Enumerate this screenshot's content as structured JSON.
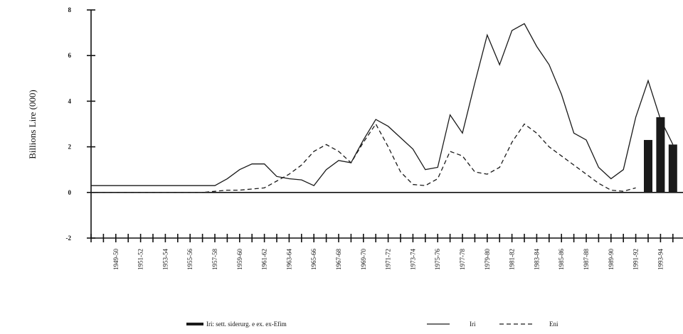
{
  "chart_data": {
    "type": "line",
    "y_label": "Billions Lire (000)",
    "ylim": [
      -2,
      8
    ],
    "yticks": [
      -2,
      0,
      2,
      4,
      6,
      8
    ],
    "grid": false,
    "categories": [
      null,
      null,
      "1949-50",
      null,
      "1951-52",
      null,
      "1953-54",
      null,
      "1955-56",
      null,
      "1957-58",
      null,
      "1959-60",
      null,
      "1961-62",
      null,
      "1963-64",
      null,
      "1965-66",
      null,
      "1967-68",
      null,
      "1969-70",
      null,
      "1971-72",
      null,
      "1973-74",
      null,
      "1975-76",
      null,
      "1977-78",
      null,
      "1979-80",
      null,
      "1981-82",
      null,
      "1983-84",
      null,
      "1985-86",
      null,
      "1987-88",
      null,
      "1989-90",
      null,
      "1991-92",
      null,
      "1993-94",
      null
    ],
    "series": [
      {
        "name": "Iri: sett. siderurg. e ex. ex-Efim",
        "type": "bar",
        "color": "#1a1a1a",
        "values": [
          null,
          null,
          null,
          null,
          null,
          null,
          null,
          null,
          null,
          null,
          null,
          null,
          null,
          null,
          null,
          null,
          null,
          null,
          null,
          null,
          null,
          null,
          null,
          null,
          null,
          null,
          null,
          null,
          null,
          null,
          null,
          null,
          null,
          null,
          null,
          null,
          null,
          null,
          null,
          null,
          null,
          null,
          null,
          null,
          null,
          2.3,
          3.3,
          2.1
        ]
      },
      {
        "name": "Iri",
        "type": "line",
        "style": "solid",
        "color": "#1a1a1a",
        "values": [
          0.3,
          0.3,
          0.3,
          0.3,
          0.3,
          0.3,
          0.3,
          0.3,
          0.3,
          0.3,
          0.3,
          0.6,
          1.0,
          1.25,
          1.25,
          0.7,
          0.6,
          0.55,
          0.3,
          1.0,
          1.4,
          1.3,
          2.3,
          3.2,
          2.9,
          2.4,
          1.9,
          1.0,
          1.1,
          3.4,
          2.6,
          4.8,
          6.9,
          5.6,
          7.1,
          7.4,
          6.4,
          5.6,
          4.3,
          2.6,
          2.3,
          1.1,
          0.6,
          1.0,
          3.3,
          4.9,
          3.2,
          2.1
        ]
      },
      {
        "name": "Eni",
        "type": "line",
        "style": "dashed",
        "color": "#1a1a1a",
        "values": [
          0,
          0,
          0,
          0,
          0,
          0,
          0,
          0,
          0,
          0,
          0.05,
          0.1,
          0.1,
          0.15,
          0.2,
          0.5,
          0.8,
          1.2,
          1.8,
          2.1,
          1.8,
          1.3,
          2.2,
          3.0,
          2.0,
          0.9,
          0.35,
          0.3,
          0.6,
          1.8,
          1.6,
          0.9,
          0.8,
          1.1,
          2.2,
          3.0,
          2.6,
          2.0,
          1.6,
          1.2,
          0.8,
          0.4,
          0.1,
          0.05,
          0.2,
          null,
          null,
          null
        ]
      }
    ]
  }
}
